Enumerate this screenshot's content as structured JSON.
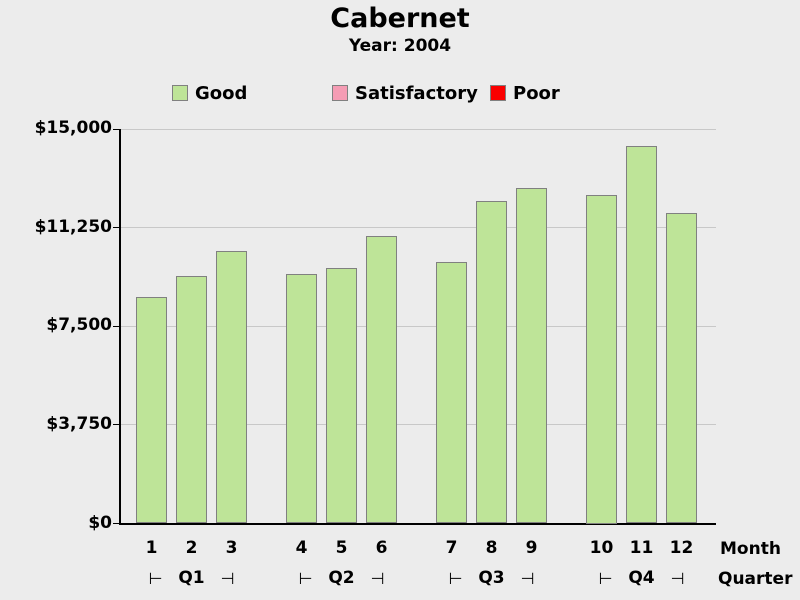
{
  "title": "Cabernet",
  "subtitle": "Year: 2004",
  "legend": [
    {
      "label": "Good",
      "color": "#bee498"
    },
    {
      "label": "Satisfactory",
      "color": "#f59cb4"
    },
    {
      "label": "Poor",
      "color": "#fa0000"
    }
  ],
  "axis_labels": {
    "month": "Month",
    "quarter": "Quarter"
  },
  "quarter_bracket": {
    "left": "⊢",
    "right": "⊣"
  },
  "chart_data": {
    "type": "bar",
    "title": "Cabernet",
    "subtitle": "Year: 2004",
    "categories": [
      "1",
      "2",
      "3",
      "4",
      "5",
      "6",
      "7",
      "8",
      "9",
      "10",
      "11",
      "12"
    ],
    "series": [
      {
        "name": "Good",
        "color": "#bee498",
        "values": [
          8600,
          9400,
          10350,
          9500,
          9700,
          10950,
          9950,
          12250,
          12750,
          12500,
          14350,
          11800
        ]
      }
    ],
    "quarters": [
      "Q1",
      "Q2",
      "Q3",
      "Q4"
    ],
    "xlabel": "Month",
    "x2label": "Quarter",
    "ylabel": "",
    "ylim": [
      0,
      15000
    ],
    "yticks": [
      {
        "value": 0,
        "label": "$0"
      },
      {
        "value": 3750,
        "label": "$3,750"
      },
      {
        "value": 7500,
        "label": "$7,500"
      },
      {
        "value": 11250,
        "label": "$11,250"
      },
      {
        "value": 15000,
        "label": "$15,000"
      }
    ],
    "legend_position": "top",
    "grid": true,
    "legend_entries": [
      "Good",
      "Satisfactory",
      "Poor"
    ]
  }
}
